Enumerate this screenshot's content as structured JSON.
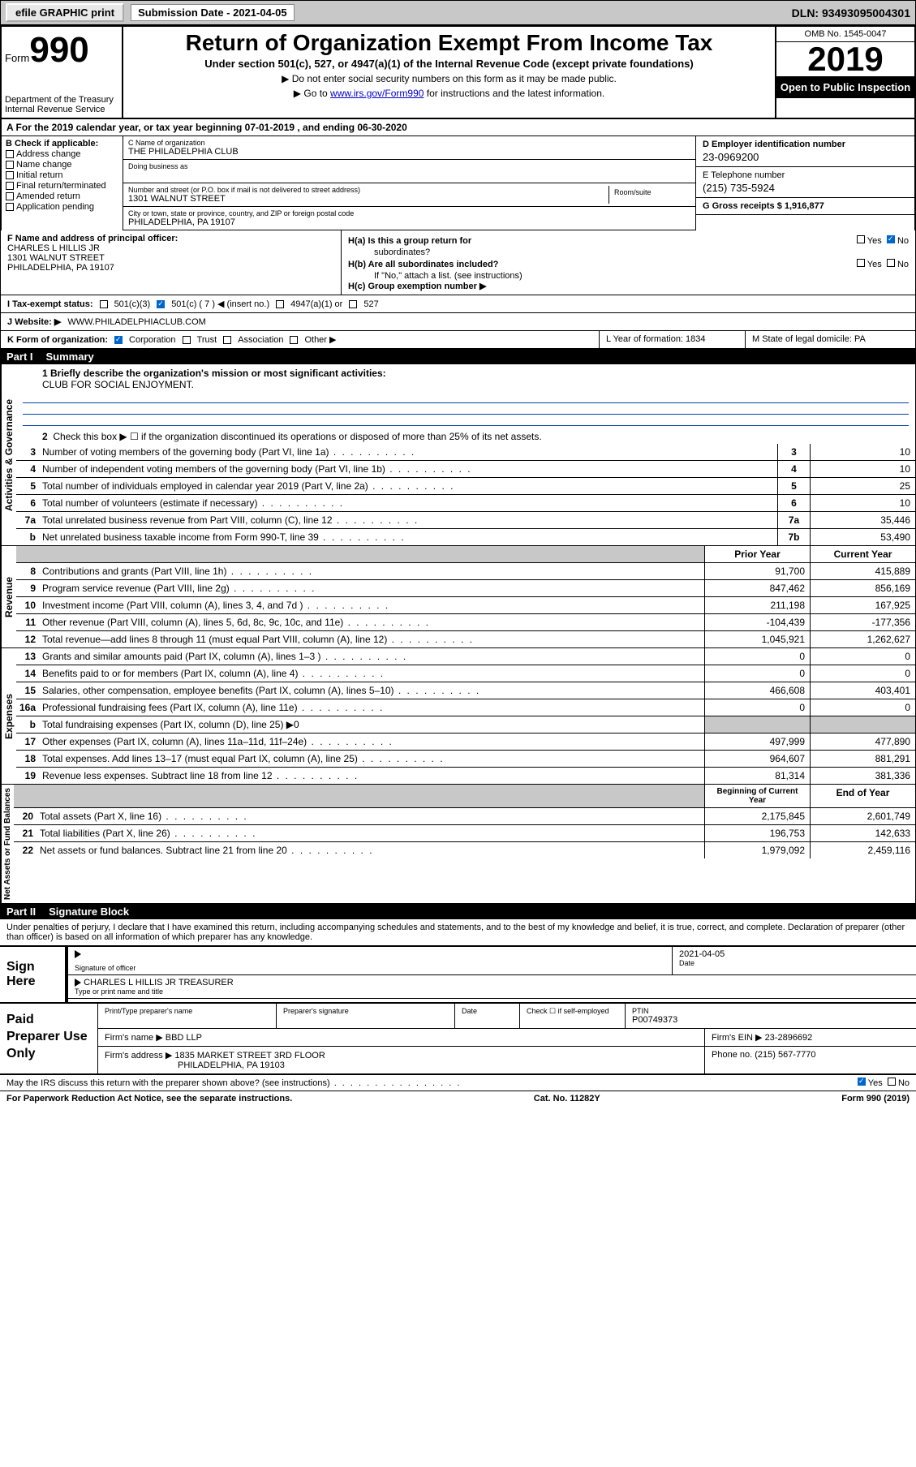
{
  "topbar": {
    "efile": "efile GRAPHIC print",
    "submission_label": "Submission Date - 2021-04-05",
    "dln": "DLN: 93493095004301"
  },
  "header": {
    "form_word": "Form",
    "form_num": "990",
    "dept": "Department of the Treasury\nInternal Revenue Service",
    "title": "Return of Organization Exempt From Income Tax",
    "subtitle": "Under section 501(c), 527, or 4947(a)(1) of the Internal Revenue Code (except private foundations)",
    "note1": "▶ Do not enter social security numbers on this form as it may be made public.",
    "note2_pre": "▶ Go to ",
    "note2_link": "www.irs.gov/Form990",
    "note2_post": " for instructions and the latest information.",
    "omb": "OMB No. 1545-0047",
    "year": "2019",
    "inspection": "Open to Public Inspection"
  },
  "row_a": "A For the 2019 calendar year, or tax year beginning 07-01-2019   , and ending 06-30-2020",
  "col_b": {
    "header": "B Check if applicable:",
    "items": [
      "Address change",
      "Name change",
      "Initial return",
      "Final return/terminated",
      "Amended return",
      "Application pending"
    ]
  },
  "col_c": {
    "name_lbl": "C Name of organization",
    "name": "THE PHILADELPHIA CLUB",
    "dba_lbl": "Doing business as",
    "addr_lbl": "Number and street (or P.O. box if mail is not delivered to street address)",
    "addr": "1301 WALNUT STREET",
    "room_lbl": "Room/suite",
    "city_lbl": "City or town, state or province, country, and ZIP or foreign postal code",
    "city": "PHILADELPHIA, PA  19107"
  },
  "col_de": {
    "d_lbl": "D Employer identification number",
    "d_val": "23-0969200",
    "e_lbl": "E Telephone number",
    "e_val": "(215) 735-5924",
    "g_lbl": "G Gross receipts $ 1,916,877"
  },
  "f": {
    "lbl": "F Name and address of principal officer:",
    "name": "CHARLES L HILLIS JR",
    "addr1": "1301 WALNUT STREET",
    "addr2": "PHILADELPHIA, PA  19107"
  },
  "h": {
    "a_lbl": "H(a)  Is this a group return for",
    "a_sub": "subordinates?",
    "b_lbl": "H(b)  Are all subordinates included?",
    "b_note": "If \"No,\" attach a list. (see instructions)",
    "c_lbl": "H(c)  Group exemption number ▶",
    "yes": "Yes",
    "no": "No"
  },
  "row_i": {
    "lbl": "I  Tax-exempt status:",
    "opts": [
      "501(c)(3)",
      "501(c) ( 7 ) ◀ (insert no.)",
      "4947(a)(1) or",
      "527"
    ]
  },
  "row_j": {
    "lbl": "J  Website: ▶",
    "val": "WWW.PHILADELPHIACLUB.COM"
  },
  "row_k": {
    "lbl": "K Form of organization:",
    "opts": [
      "Corporation",
      "Trust",
      "Association",
      "Other ▶"
    ]
  },
  "l": {
    "lbl": "L Year of formation: 1834"
  },
  "m": {
    "lbl": "M State of legal domicile: PA"
  },
  "part1": {
    "num": "Part I",
    "title": "Summary"
  },
  "summary": {
    "q1_lbl": "1  Briefly describe the organization's mission or most significant activities:",
    "q1_val": "CLUB FOR SOCIAL ENJOYMENT.",
    "q2": "Check this box ▶ ☐  if the organization discontinued its operations or disposed of more than 25% of its net assets.",
    "rows_gov": [
      {
        "n": "3",
        "t": "Number of voting members of the governing body (Part VI, line 1a)",
        "b": "3",
        "v": "10"
      },
      {
        "n": "4",
        "t": "Number of independent voting members of the governing body (Part VI, line 1b)",
        "b": "4",
        "v": "10"
      },
      {
        "n": "5",
        "t": "Total number of individuals employed in calendar year 2019 (Part V, line 2a)",
        "b": "5",
        "v": "25"
      },
      {
        "n": "6",
        "t": "Total number of volunteers (estimate if necessary)",
        "b": "6",
        "v": "10"
      },
      {
        "n": "7a",
        "t": "Total unrelated business revenue from Part VIII, column (C), line 12",
        "b": "7a",
        "v": "35,446"
      },
      {
        "n": "b",
        "t": "Net unrelated business taxable income from Form 990-T, line 39",
        "b": "7b",
        "v": "53,490"
      }
    ],
    "hdr_prior": "Prior Year",
    "hdr_current": "Current Year",
    "rows_rev": [
      {
        "n": "8",
        "t": "Contributions and grants (Part VIII, line 1h)",
        "p": "91,700",
        "c": "415,889"
      },
      {
        "n": "9",
        "t": "Program service revenue (Part VIII, line 2g)",
        "p": "847,462",
        "c": "856,169"
      },
      {
        "n": "10",
        "t": "Investment income (Part VIII, column (A), lines 3, 4, and 7d )",
        "p": "211,198",
        "c": "167,925"
      },
      {
        "n": "11",
        "t": "Other revenue (Part VIII, column (A), lines 5, 6d, 8c, 9c, 10c, and 11e)",
        "p": "-104,439",
        "c": "-177,356"
      },
      {
        "n": "12",
        "t": "Total revenue—add lines 8 through 11 (must equal Part VIII, column (A), line 12)",
        "p": "1,045,921",
        "c": "1,262,627"
      }
    ],
    "rows_exp": [
      {
        "n": "13",
        "t": "Grants and similar amounts paid (Part IX, column (A), lines 1–3 )",
        "p": "0",
        "c": "0"
      },
      {
        "n": "14",
        "t": "Benefits paid to or for members (Part IX, column (A), line 4)",
        "p": "0",
        "c": "0"
      },
      {
        "n": "15",
        "t": "Salaries, other compensation, employee benefits (Part IX, column (A), lines 5–10)",
        "p": "466,608",
        "c": "403,401"
      },
      {
        "n": "16a",
        "t": "Professional fundraising fees (Part IX, column (A), line 11e)",
        "p": "0",
        "c": "0"
      },
      {
        "n": "b",
        "t": "Total fundraising expenses (Part IX, column (D), line 25) ▶0",
        "p": "",
        "c": "",
        "grey": true
      },
      {
        "n": "17",
        "t": "Other expenses (Part IX, column (A), lines 11a–11d, 11f–24e)",
        "p": "497,999",
        "c": "477,890"
      },
      {
        "n": "18",
        "t": "Total expenses. Add lines 13–17 (must equal Part IX, column (A), line 25)",
        "p": "964,607",
        "c": "881,291"
      },
      {
        "n": "19",
        "t": "Revenue less expenses. Subtract line 18 from line 12",
        "p": "81,314",
        "c": "381,336"
      }
    ],
    "hdr_begin": "Beginning of Current Year",
    "hdr_end": "End of Year",
    "rows_net": [
      {
        "n": "20",
        "t": "Total assets (Part X, line 16)",
        "p": "2,175,845",
        "c": "2,601,749"
      },
      {
        "n": "21",
        "t": "Total liabilities (Part X, line 26)",
        "p": "196,753",
        "c": "142,633"
      },
      {
        "n": "22",
        "t": "Net assets or fund balances. Subtract line 21 from line 20",
        "p": "1,979,092",
        "c": "2,459,116"
      }
    ],
    "labels": {
      "gov": "Activities & Governance",
      "rev": "Revenue",
      "exp": "Expenses",
      "net": "Net Assets or Fund Balances"
    }
  },
  "part2": {
    "num": "Part II",
    "title": "Signature Block"
  },
  "declare": "Under penalties of perjury, I declare that I have examined this return, including accompanying schedules and statements, and to the best of my knowledge and belief, it is true, correct, and complete. Declaration of preparer (other than officer) is based on all information of which preparer has any knowledge.",
  "sign": {
    "here": "Sign Here",
    "sig_lbl": "Signature of officer",
    "date": "2021-04-05",
    "date_lbl": "Date",
    "name": "CHARLES L HILLIS JR  TREASURER",
    "name_lbl": "Type or print name and title"
  },
  "prep": {
    "title": "Paid Preparer Use Only",
    "h1": "Print/Type preparer's name",
    "h2": "Preparer's signature",
    "h3": "Date",
    "h4_pre": "Check ☐ if self-employed",
    "h5_lbl": "PTIN",
    "h5_val": "P00749373",
    "firm_name_lbl": "Firm's name   ▶",
    "firm_name": "BBD LLP",
    "firm_ein_lbl": "Firm's EIN ▶",
    "firm_ein": "23-2896692",
    "firm_addr_lbl": "Firm's address ▶",
    "firm_addr1": "1835 MARKET STREET 3RD FLOOR",
    "firm_addr2": "PHILADELPHIA, PA  19103",
    "phone_lbl": "Phone no.",
    "phone": "(215) 567-7770"
  },
  "bottom": {
    "q": "May the IRS discuss this return with the preparer shown above? (see instructions)",
    "yes": "Yes",
    "no": "No"
  },
  "footer": {
    "left": "For Paperwork Reduction Act Notice, see the separate instructions.",
    "mid": "Cat. No. 11282Y",
    "right": "Form 990 (2019)"
  }
}
